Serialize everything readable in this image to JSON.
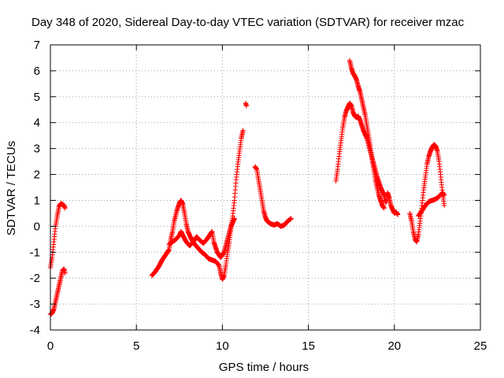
{
  "chart_data": {
    "type": "scatter",
    "title": "Day 348 of 2020, Sidereal Day-to-day VTEC variation (SDTVAR) for receiver mzac",
    "xlabel": "GPS time / hours",
    "ylabel": "SDTVAR / TECUs",
    "xlim": [
      0,
      25
    ],
    "ylim": [
      -4,
      7
    ],
    "x_ticks": [
      "0",
      "5",
      "10",
      "15",
      "20",
      "25"
    ],
    "y_ticks": [
      "-4",
      "-3",
      "-2",
      "-1",
      "0",
      "1",
      "2",
      "3",
      "4",
      "5",
      "6",
      "7"
    ],
    "grid": true,
    "marker": "+",
    "color": "#ff0000",
    "series": [
      {
        "segments": [
          [
            [
              0.0,
              -1.6
            ],
            [
              0.1,
              -1.2
            ],
            [
              0.2,
              -0.6
            ],
            [
              0.3,
              0.0
            ],
            [
              0.4,
              0.4
            ],
            [
              0.5,
              0.75
            ],
            [
              0.6,
              0.88
            ],
            [
              0.7,
              0.85
            ],
            [
              0.8,
              0.8
            ],
            [
              0.85,
              0.7
            ]
          ],
          [
            [
              0.0,
              -3.4
            ],
            [
              0.1,
              -3.35
            ],
            [
              0.2,
              -3.2
            ],
            [
              0.3,
              -2.9
            ],
            [
              0.4,
              -2.6
            ],
            [
              0.5,
              -2.3
            ],
            [
              0.6,
              -2.0
            ],
            [
              0.7,
              -1.7
            ],
            [
              0.8,
              -1.65
            ],
            [
              0.85,
              -1.8
            ]
          ],
          [
            [
              5.9,
              -1.9
            ],
            [
              6.1,
              -1.75
            ],
            [
              6.3,
              -1.55
            ],
            [
              6.5,
              -1.3
            ],
            [
              6.7,
              -1.1
            ],
            [
              6.9,
              -0.9
            ],
            [
              7.0,
              -0.5
            ],
            [
              7.1,
              -0.2
            ],
            [
              7.2,
              0.2
            ],
            [
              7.35,
              0.6
            ],
            [
              7.5,
              0.9
            ],
            [
              7.6,
              1.0
            ],
            [
              7.7,
              0.85
            ],
            [
              7.8,
              0.5
            ],
            [
              7.9,
              0.1
            ],
            [
              8.0,
              -0.2
            ],
            [
              8.2,
              -0.5
            ],
            [
              8.4,
              -0.7
            ],
            [
              8.6,
              -0.85
            ],
            [
              8.8,
              -1.0
            ],
            [
              9.0,
              -1.1
            ],
            [
              9.2,
              -1.25
            ],
            [
              9.4,
              -1.3
            ],
            [
              9.6,
              -1.35
            ],
            [
              9.8,
              -1.5
            ],
            [
              9.9,
              -1.8
            ],
            [
              10.0,
              -2.05
            ],
            [
              10.1,
              -1.9
            ],
            [
              10.2,
              -1.5
            ],
            [
              10.3,
              -1.0
            ],
            [
              10.4,
              -0.6
            ],
            [
              10.5,
              -0.1
            ],
            [
              10.6,
              0.4
            ],
            [
              10.7,
              1.0
            ],
            [
              10.8,
              1.8
            ],
            [
              10.9,
              2.4
            ],
            [
              11.0,
              2.9
            ],
            [
              11.1,
              3.4
            ],
            [
              11.2,
              3.7
            ]
          ],
          [
            [
              6.9,
              -0.7
            ],
            [
              7.1,
              -0.6
            ],
            [
              7.3,
              -0.5
            ],
            [
              7.5,
              -0.35
            ],
            [
              7.6,
              -0.2
            ],
            [
              7.7,
              -0.35
            ],
            [
              7.9,
              -0.6
            ],
            [
              8.1,
              -0.75
            ],
            [
              8.3,
              -0.6
            ],
            [
              8.5,
              -0.4
            ],
            [
              8.7,
              -0.55
            ],
            [
              8.9,
              -0.65
            ],
            [
              9.1,
              -0.5
            ],
            [
              9.3,
              -0.3
            ],
            [
              9.4,
              -0.2
            ],
            [
              9.5,
              -0.6
            ],
            [
              9.7,
              -1.0
            ],
            [
              9.9,
              -1.2
            ],
            [
              10.1,
              -1.0
            ],
            [
              10.3,
              -0.5
            ],
            [
              10.5,
              0.0
            ],
            [
              10.7,
              0.3
            ]
          ],
          [
            [
              11.35,
              4.75
            ],
            [
              11.4,
              4.65
            ]
          ],
          [
            [
              11.9,
              2.3
            ],
            [
              12.0,
              2.2
            ],
            [
              12.1,
              1.8
            ],
            [
              12.2,
              1.4
            ],
            [
              12.3,
              1.0
            ],
            [
              12.4,
              0.6
            ],
            [
              12.5,
              0.35
            ],
            [
              12.6,
              0.2
            ],
            [
              12.8,
              0.1
            ],
            [
              13.0,
              0.05
            ],
            [
              13.2,
              0.1
            ],
            [
              13.4,
              0.0
            ],
            [
              13.6,
              0.05
            ],
            [
              13.8,
              0.2
            ],
            [
              14.0,
              0.3
            ]
          ],
          [
            [
              16.6,
              1.75
            ],
            [
              16.7,
              2.2
            ],
            [
              16.8,
              2.8
            ],
            [
              16.9,
              3.3
            ],
            [
              17.0,
              3.8
            ],
            [
              17.1,
              4.2
            ],
            [
              17.2,
              4.45
            ],
            [
              17.3,
              4.6
            ],
            [
              17.4,
              4.75
            ],
            [
              17.5,
              4.65
            ],
            [
              17.6,
              4.4
            ],
            [
              17.7,
              4.25
            ],
            [
              17.8,
              4.2
            ],
            [
              17.9,
              4.25
            ],
            [
              18.0,
              4.1
            ],
            [
              18.2,
              3.7
            ],
            [
              18.4,
              3.4
            ],
            [
              18.6,
              2.9
            ],
            [
              18.8,
              2.4
            ],
            [
              19.0,
              1.9
            ],
            [
              19.2,
              1.5
            ],
            [
              19.4,
              1.2
            ],
            [
              19.5,
              0.9
            ],
            [
              19.6,
              1.3
            ],
            [
              19.7,
              1.1
            ],
            [
              19.8,
              0.8
            ],
            [
              20.0,
              0.5
            ],
            [
              20.1,
              0.55
            ],
            [
              20.2,
              0.45
            ]
          ],
          [
            [
              17.4,
              6.4
            ],
            [
              17.5,
              6.1
            ],
            [
              17.6,
              5.9
            ],
            [
              17.7,
              5.8
            ],
            [
              17.8,
              5.65
            ],
            [
              17.9,
              5.4
            ],
            [
              18.0,
              5.2
            ],
            [
              18.1,
              4.9
            ],
            [
              18.2,
              4.6
            ],
            [
              18.3,
              4.3
            ],
            [
              18.4,
              3.9
            ],
            [
              18.5,
              3.5
            ],
            [
              18.6,
              3.1
            ],
            [
              18.7,
              2.6
            ],
            [
              18.8,
              2.2
            ],
            [
              18.9,
              1.8
            ],
            [
              19.0,
              1.5
            ],
            [
              19.1,
              1.2
            ],
            [
              19.2,
              1.0
            ],
            [
              19.3,
              0.8
            ],
            [
              19.4,
              0.7
            ]
          ],
          [
            [
              20.9,
              0.5
            ],
            [
              21.0,
              0.2
            ],
            [
              21.1,
              -0.2
            ],
            [
              21.2,
              -0.5
            ],
            [
              21.3,
              -0.6
            ],
            [
              21.4,
              -0.3
            ],
            [
              21.5,
              0.2
            ],
            [
              21.6,
              0.8
            ],
            [
              21.7,
              1.4
            ],
            [
              21.8,
              1.9
            ],
            [
              21.9,
              2.4
            ],
            [
              22.0,
              2.7
            ],
            [
              22.1,
              2.9
            ],
            [
              22.2,
              3.05
            ],
            [
              22.3,
              3.15
            ],
            [
              22.4,
              3.1
            ],
            [
              22.5,
              2.9
            ],
            [
              22.6,
              2.5
            ],
            [
              22.7,
              1.9
            ],
            [
              22.8,
              1.3
            ],
            [
              22.9,
              0.8
            ]
          ],
          [
            [
              21.4,
              0.4
            ],
            [
              21.6,
              0.6
            ],
            [
              21.8,
              0.8
            ],
            [
              22.0,
              0.95
            ],
            [
              22.2,
              1.0
            ],
            [
              22.4,
              1.05
            ],
            [
              22.6,
              1.15
            ],
            [
              22.8,
              1.3
            ],
            [
              22.9,
              1.2
            ]
          ]
        ]
      }
    ]
  }
}
